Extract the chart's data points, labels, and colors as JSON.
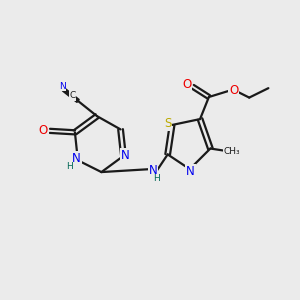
{
  "bg_color": "#ebebeb",
  "bond_color": "#1a1a1a",
  "bond_width": 1.6,
  "atom_colors": {
    "C": "#1a1a1a",
    "N": "#0000ee",
    "O": "#ee0000",
    "S": "#bbaa00",
    "H": "#006655"
  },
  "font_size": 8.5,
  "sub_font": 6.5
}
